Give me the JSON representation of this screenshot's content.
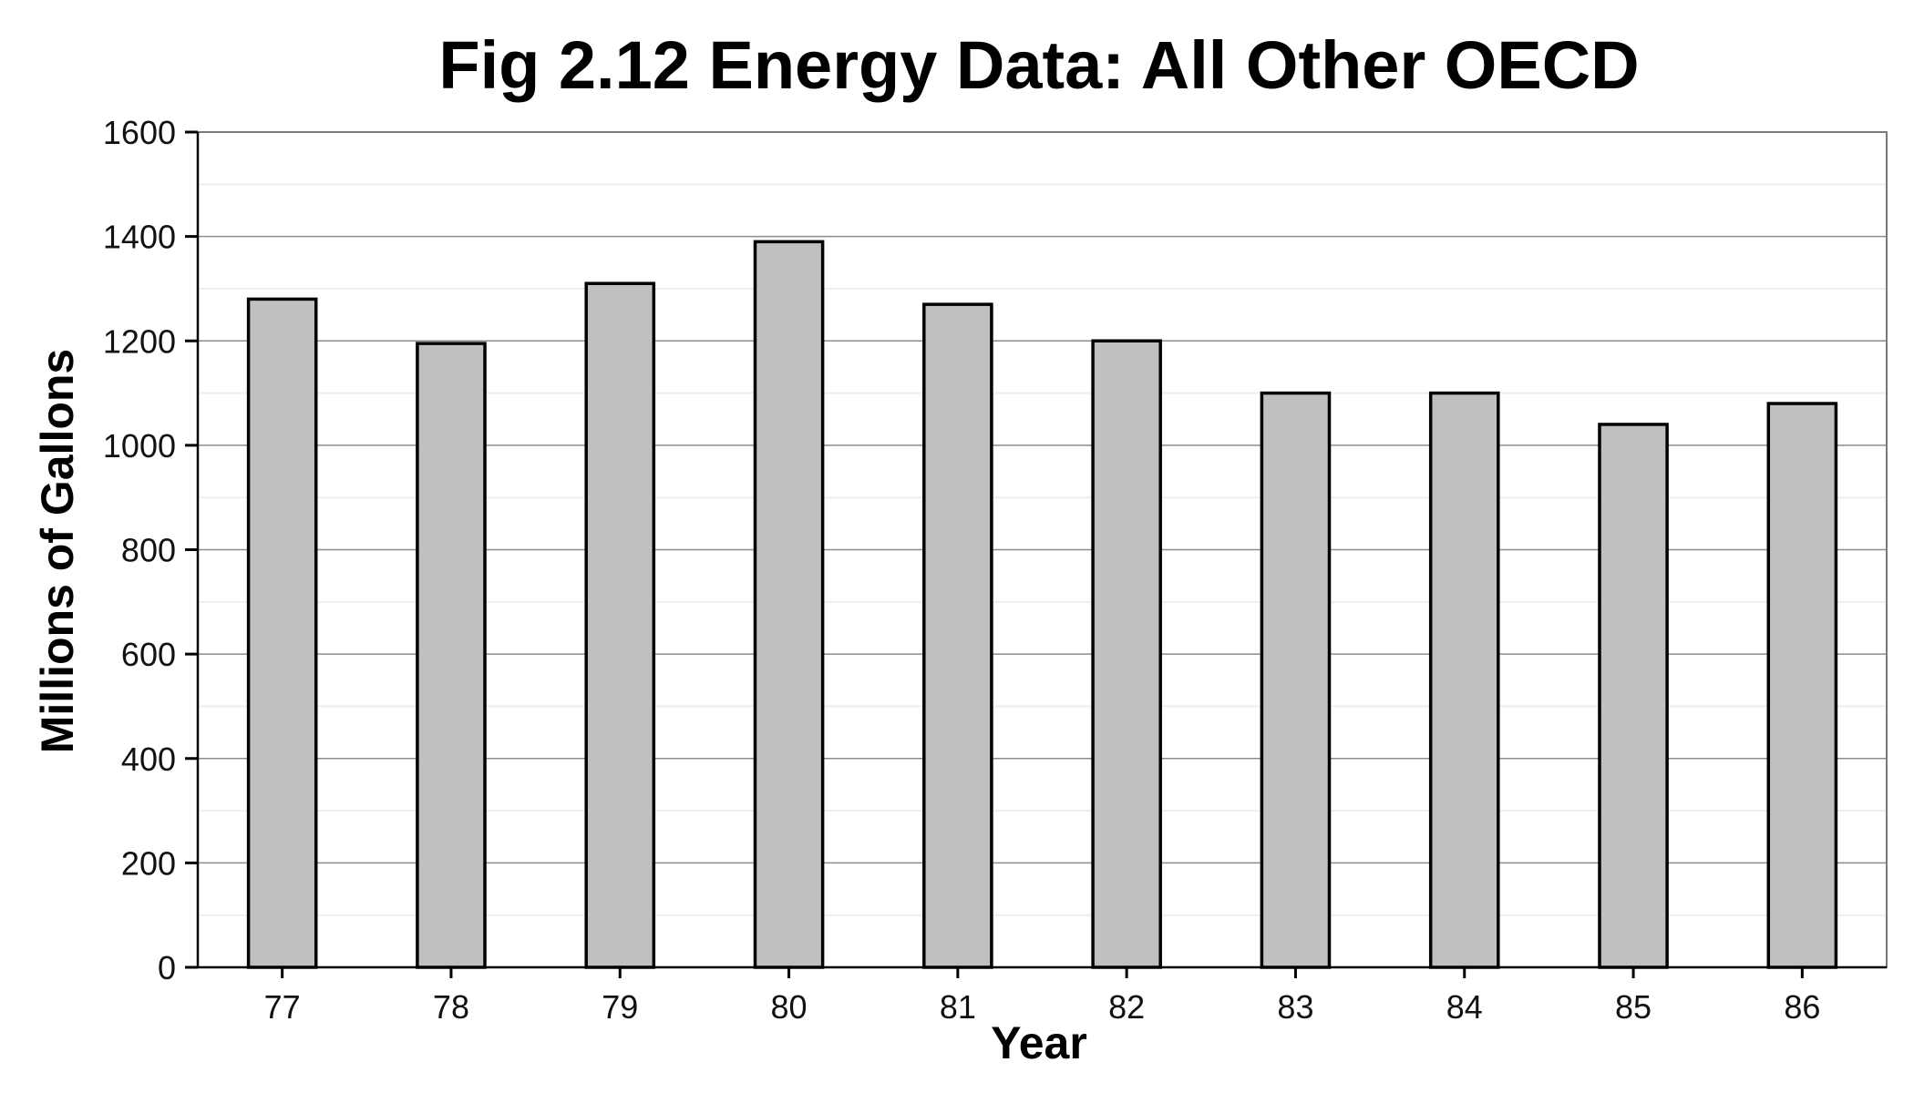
{
  "chart_data": {
    "type": "bar",
    "title": "Fig 2.12 Energy Data: All Other OECD",
    "xlabel": "Year",
    "ylabel": "Millions of Gallons",
    "categories": [
      "77",
      "78",
      "79",
      "80",
      "81",
      "82",
      "83",
      "84",
      "85",
      "86"
    ],
    "values": [
      1280,
      1195,
      1310,
      1390,
      1270,
      1200,
      1100,
      1100,
      1040,
      1080
    ],
    "ylim": [
      0,
      1600
    ],
    "yticks": [
      0,
      200,
      400,
      600,
      800,
      1000,
      1200,
      1400,
      1600
    ],
    "grid": true,
    "legend": "none",
    "colors": {
      "bar_fill": "#c0c0c0",
      "bar_stroke": "#000000",
      "grid_major": "#8c8c8c",
      "grid_minor": "#eeeeee",
      "panel_border": "#7a7a7a",
      "axis": "#000000"
    }
  }
}
